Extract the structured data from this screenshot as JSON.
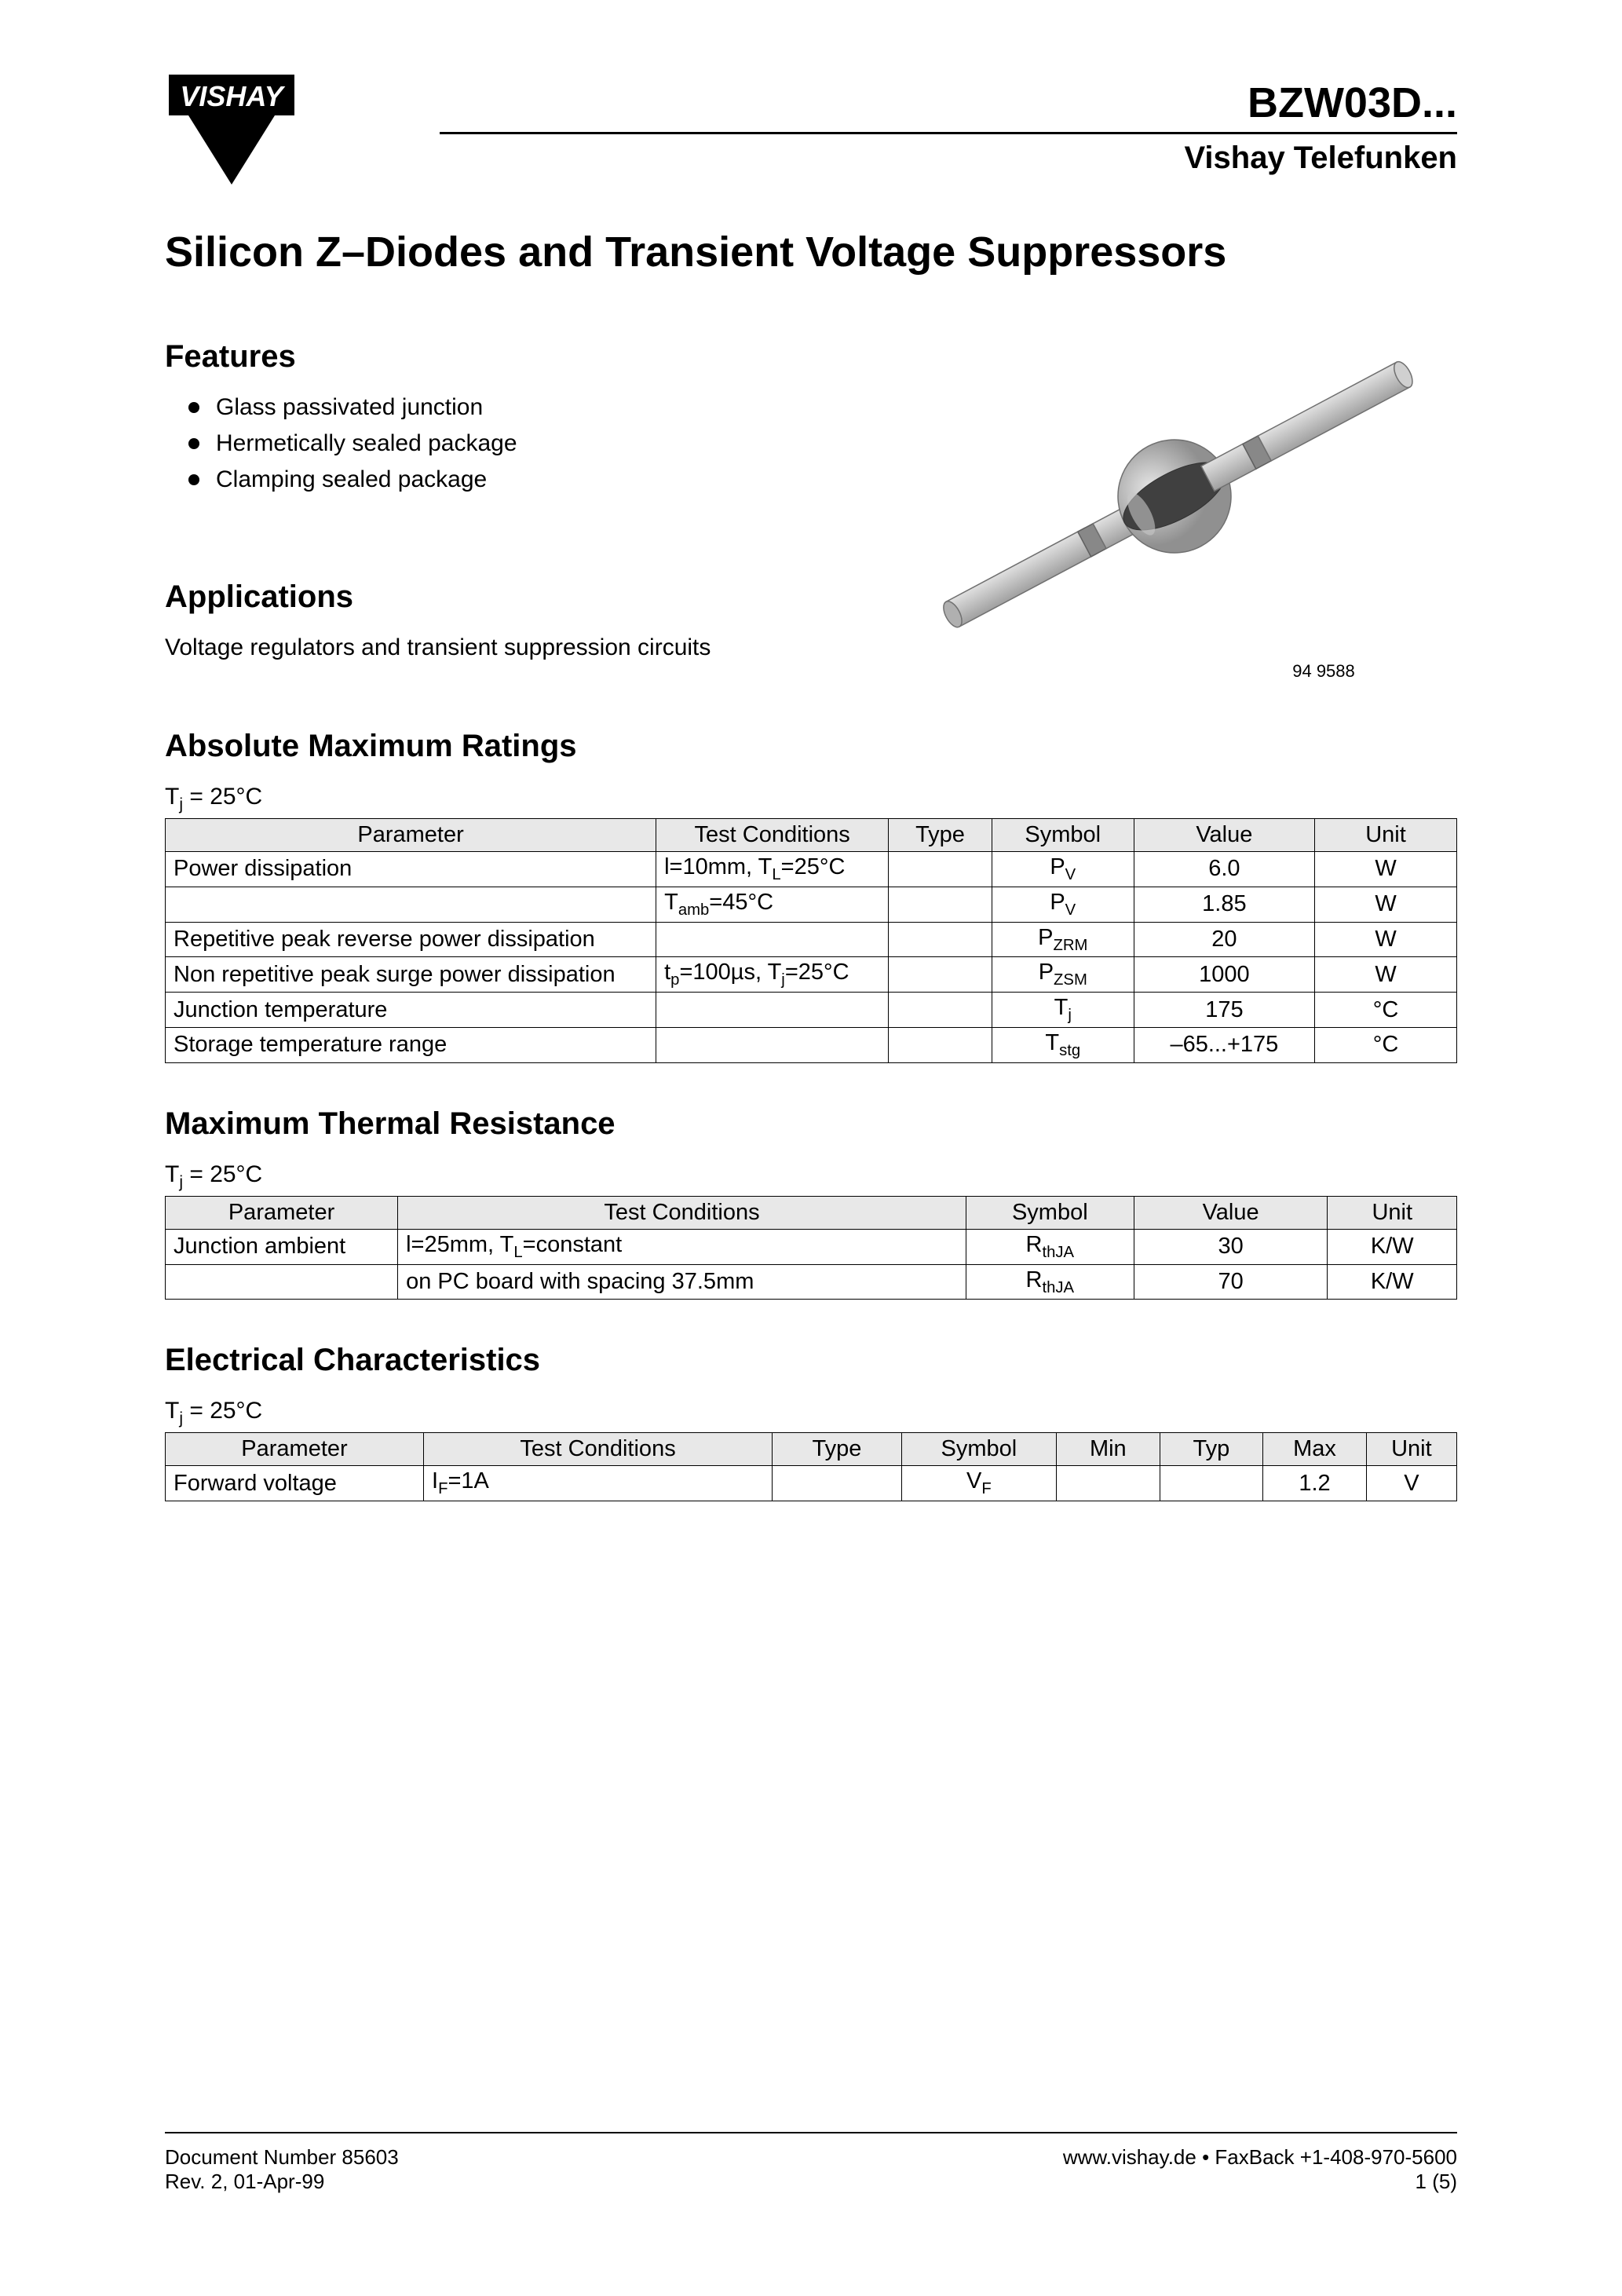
{
  "header": {
    "logo_text": "VISHAY",
    "part_number": "BZW03D...",
    "subtitle": "Vishay Telefunken"
  },
  "title": "Silicon Z–Diodes and Transient Voltage Suppressors",
  "features": {
    "heading": "Features",
    "items": [
      "Glass passivated junction",
      "Hermetically sealed package",
      "Clamping sealed package"
    ]
  },
  "applications": {
    "heading": "Applications",
    "text": "Voltage regulators and transient suppression circuits"
  },
  "diagram": {
    "caption": "94 9588",
    "body_color": "#c8c8c8",
    "band_color": "#888888",
    "center_dark": "#303030",
    "center_light": "#b8b8b8",
    "stroke": "#606060"
  },
  "abs_max": {
    "heading": "Absolute Maximum Ratings",
    "note_html": "T<sub>j</sub> = 25°C",
    "columns": [
      "Parameter",
      "Test Conditions",
      "Type",
      "Symbol",
      "Value",
      "Unit"
    ],
    "col_widths": [
      "38%",
      "18%",
      "8%",
      "11%",
      "14%",
      "11%"
    ],
    "rows": [
      {
        "param": "Power dissipation",
        "cond_html": "l=10mm, T<sub>L</sub>=25°C",
        "type": "",
        "sym_html": "P<sub>V</sub>",
        "val": "6.0",
        "unit": "W"
      },
      {
        "param": "",
        "cond_html": "T<sub>amb</sub>=45°C",
        "type": "",
        "sym_html": "P<sub>V</sub>",
        "val": "1.85",
        "unit": "W"
      },
      {
        "param": "Repetitive peak reverse power dissipation",
        "cond_html": "",
        "type": "",
        "sym_html": "P<sub>ZRM</sub>",
        "val": "20",
        "unit": "W"
      },
      {
        "param": "Non repetitive peak surge power dissipation",
        "cond_html": "t<sub>p</sub>=100µs, T<sub>j</sub>=25°C",
        "type": "",
        "sym_html": "P<sub>ZSM</sub>",
        "val": "1000",
        "unit": "W"
      },
      {
        "param": "Junction temperature",
        "cond_html": "",
        "type": "",
        "sym_html": "T<sub>j</sub>",
        "val": "175",
        "unit": "°C"
      },
      {
        "param": "Storage temperature range",
        "cond_html": "",
        "type": "",
        "sym_html": "T<sub>stg</sub>",
        "val": "–65...+175",
        "unit": "°C"
      }
    ]
  },
  "thermal": {
    "heading": "Maximum Thermal Resistance",
    "note_html": "T<sub>j</sub> = 25°C",
    "columns": [
      "Parameter",
      "Test Conditions",
      "Symbol",
      "Value",
      "Unit"
    ],
    "col_widths": [
      "18%",
      "44%",
      "13%",
      "15%",
      "10%"
    ],
    "rows": [
      {
        "param": "Junction ambient",
        "cond_html": "l=25mm, T<sub>L</sub>=constant",
        "sym_html": "R<sub>thJA</sub>",
        "val": "30",
        "unit": "K/W"
      },
      {
        "param": "",
        "cond_html": "on PC board with spacing 37.5mm",
        "sym_html": "R<sub>thJA</sub>",
        "val": "70",
        "unit": "K/W"
      }
    ]
  },
  "electrical": {
    "heading": "Electrical Characteristics",
    "note_html": "T<sub>j</sub> = 25°C",
    "columns": [
      "Parameter",
      "Test Conditions",
      "Type",
      "Symbol",
      "Min",
      "Typ",
      "Max",
      "Unit"
    ],
    "col_widths": [
      "20%",
      "27%",
      "10%",
      "12%",
      "8%",
      "8%",
      "8%",
      "7%"
    ],
    "rows": [
      {
        "param": "Forward voltage",
        "cond_html": "I<sub>F</sub>=1A",
        "type": "",
        "sym_html": "V<sub>F</sub>",
        "min": "",
        "typ": "",
        "max": "1.2",
        "unit": "V"
      }
    ]
  },
  "footer": {
    "doc_num": "Document Number 85603",
    "rev": "Rev. 2, 01-Apr-99",
    "url": "www.vishay.de • FaxBack +1-408-970-5600",
    "page": "1 (5)"
  }
}
